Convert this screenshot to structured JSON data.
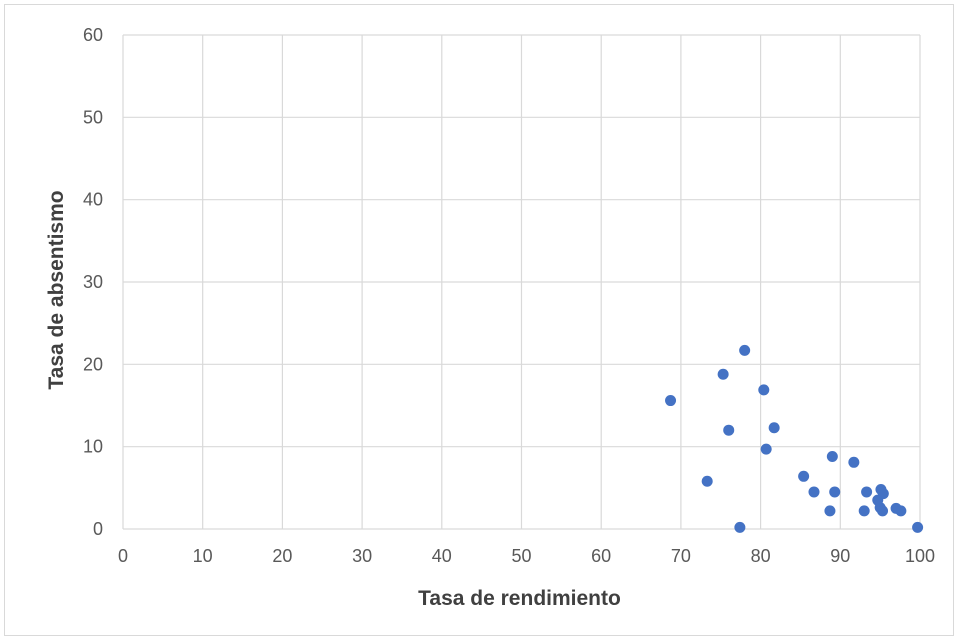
{
  "chart_data": {
    "type": "scatter",
    "title": "",
    "xlabel": "Tasa de rendimiento",
    "ylabel": "Tasa de absentismo",
    "xlim": [
      0,
      100
    ],
    "ylim": [
      0,
      60
    ],
    "x_ticks": [
      "0",
      "10",
      "20",
      "30",
      "40",
      "50",
      "60",
      "70",
      "80",
      "90",
      "100"
    ],
    "y_ticks": [
      "0",
      "10",
      "20",
      "30",
      "40",
      "50",
      "60"
    ],
    "grid": true,
    "marker_color": "#4472c4",
    "series": [
      {
        "points": [
          {
            "x": 68.7,
            "y": 15.6
          },
          {
            "x": 73.3,
            "y": 5.8
          },
          {
            "x": 75.3,
            "y": 18.8
          },
          {
            "x": 76.0,
            "y": 12.0
          },
          {
            "x": 77.4,
            "y": 0.2
          },
          {
            "x": 78.0,
            "y": 21.7
          },
          {
            "x": 80.4,
            "y": 16.9
          },
          {
            "x": 80.7,
            "y": 9.7
          },
          {
            "x": 81.7,
            "y": 12.3
          },
          {
            "x": 85.4,
            "y": 6.4
          },
          {
            "x": 86.7,
            "y": 4.5
          },
          {
            "x": 88.7,
            "y": 2.2
          },
          {
            "x": 89.0,
            "y": 8.8
          },
          {
            "x": 89.3,
            "y": 4.5
          },
          {
            "x": 91.7,
            "y": 8.1
          },
          {
            "x": 93.0,
            "y": 2.2
          },
          {
            "x": 93.3,
            "y": 4.5
          },
          {
            "x": 94.7,
            "y": 3.5
          },
          {
            "x": 95.0,
            "y": 2.6
          },
          {
            "x": 95.1,
            "y": 4.8
          },
          {
            "x": 95.3,
            "y": 2.2
          },
          {
            "x": 95.4,
            "y": 4.3
          },
          {
            "x": 97.0,
            "y": 2.5
          },
          {
            "x": 97.6,
            "y": 2.2
          },
          {
            "x": 99.7,
            "y": 0.2
          }
        ]
      }
    ]
  }
}
